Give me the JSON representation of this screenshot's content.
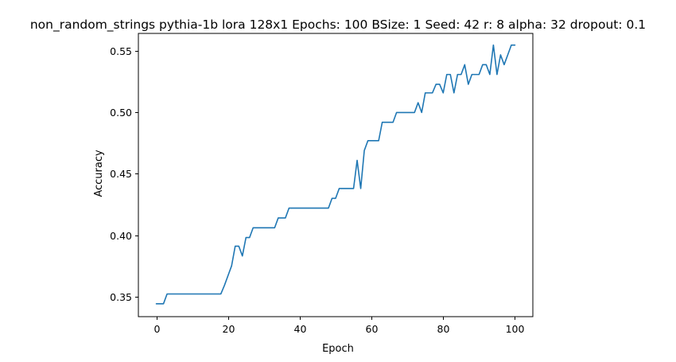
{
  "chart_data": {
    "type": "line",
    "title": "non_random_strings pythia-1b lora 128x1 Epochs: 100 BSize: 1 Seed: 42 r: 8 alpha: 32 dropout: 0.1",
    "xlabel": "Epoch",
    "ylabel": "Accuracy",
    "xlim": [
      -5,
      105
    ],
    "ylim": [
      0.3335,
      0.5645
    ],
    "xticks": [
      0,
      20,
      40,
      60,
      80,
      100
    ],
    "xtick_labels": [
      "0",
      "20",
      "40",
      "60",
      "80",
      "100"
    ],
    "yticks": [
      0.35,
      0.4,
      0.45,
      0.5,
      0.55
    ],
    "ytick_labels": [
      "0.35",
      "0.40",
      "0.45",
      "0.50",
      "0.55"
    ],
    "grid": false,
    "line_color": "#1f77b4",
    "series": [
      {
        "x": [
          0,
          1,
          2,
          3,
          4,
          5,
          6,
          7,
          8,
          9,
          10,
          11,
          12,
          13,
          14,
          15,
          16,
          17,
          18,
          19,
          20,
          21,
          22,
          23,
          24,
          25,
          26,
          27,
          28,
          29,
          30,
          31,
          32,
          33,
          34,
          35,
          36,
          37,
          38,
          39,
          40,
          41,
          42,
          43,
          44,
          45,
          46,
          47,
          48,
          49,
          50,
          51,
          52,
          53,
          54,
          55,
          56,
          57,
          58,
          59,
          60,
          61,
          62,
          63,
          64,
          65,
          66,
          67,
          68,
          69,
          70,
          71,
          72,
          73,
          74,
          75,
          76,
          77,
          78,
          79,
          80,
          81,
          82,
          83,
          84,
          85,
          86,
          87,
          88,
          89,
          90,
          91,
          92,
          93,
          94,
          95,
          96,
          97,
          98,
          99,
          100
        ],
        "y": [
          0.344,
          0.344,
          0.344,
          0.352,
          0.352,
          0.352,
          0.352,
          0.352,
          0.352,
          0.352,
          0.352,
          0.352,
          0.352,
          0.352,
          0.352,
          0.352,
          0.352,
          0.352,
          0.352,
          0.359,
          0.367,
          0.375,
          0.391,
          0.391,
          0.383,
          0.398,
          0.398,
          0.406,
          0.406,
          0.406,
          0.406,
          0.406,
          0.406,
          0.406,
          0.414,
          0.414,
          0.414,
          0.422,
          0.422,
          0.422,
          0.422,
          0.422,
          0.422,
          0.422,
          0.422,
          0.422,
          0.422,
          0.422,
          0.422,
          0.43,
          0.43,
          0.438,
          0.438,
          0.438,
          0.438,
          0.438,
          0.461,
          0.438,
          0.469,
          0.477,
          0.477,
          0.477,
          0.477,
          0.492,
          0.492,
          0.492,
          0.492,
          0.5,
          0.5,
          0.5,
          0.5,
          0.5,
          0.5,
          0.508,
          0.5,
          0.516,
          0.516,
          0.516,
          0.523,
          0.523,
          0.516,
          0.531,
          0.531,
          0.516,
          0.531,
          0.531,
          0.539,
          0.523,
          0.531,
          0.531,
          0.531,
          0.539,
          0.539,
          0.531,
          0.555,
          0.531,
          0.547,
          0.539,
          0.547,
          0.555,
          0.555
        ]
      }
    ]
  }
}
